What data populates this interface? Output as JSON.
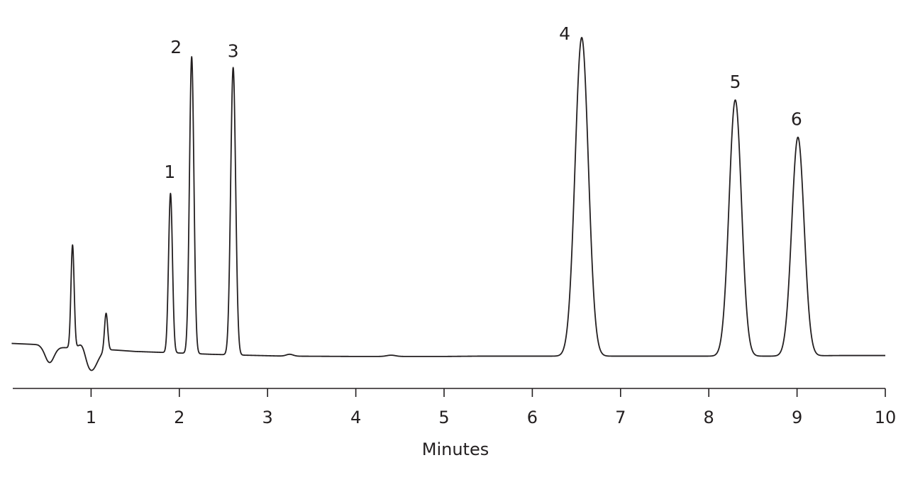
{
  "chart_data": {
    "type": "line",
    "title": "",
    "xlabel": "Minutes",
    "ylabel": "",
    "xlim": [
      0,
      10
    ],
    "ylim": [
      -0.06,
      1.07
    ],
    "xticks": [
      1,
      2,
      3,
      4,
      5,
      6,
      7,
      8,
      9,
      10
    ],
    "xtick_labels": [
      "1",
      "2",
      "3",
      "4",
      "5",
      "6",
      "7",
      "8",
      "9",
      "10"
    ],
    "grid": false,
    "legend": "none",
    "line_color": "#231f20",
    "baseline": {
      "x": [
        0.0,
        0.4,
        0.5,
        1.25,
        1.5,
        1.8,
        2.0,
        2.35,
        2.6,
        2.9,
        3.2,
        4.0,
        4.4,
        5.0,
        5.4,
        6.0,
        6.4,
        7.0,
        8.0,
        8.7,
        9.5,
        10.0
      ],
      "y": [
        0.04,
        0.035,
        0.028,
        0.018,
        0.013,
        0.01,
        0.008,
        0.004,
        0.002,
        0.0,
        -0.002,
        -0.003,
        -0.003,
        -0.003,
        -0.002,
        -0.002,
        -0.002,
        -0.002,
        -0.002,
        -0.002,
        0.0,
        0.0
      ]
    },
    "disturbances": [
      {
        "center": 0.53,
        "width": 0.05,
        "height": -0.05
      },
      {
        "center": 0.9,
        "width": 0.04,
        "height": 0.03
      },
      {
        "center": 1.0,
        "width": 0.07,
        "height": -0.07
      }
    ],
    "peaks": [
      {
        "label": "",
        "rt": 0.79,
        "height": 0.33,
        "width": 0.018
      },
      {
        "label": "",
        "rt": 1.17,
        "height": 0.12,
        "width": 0.018
      },
      {
        "label": "1",
        "rt": 1.9,
        "height": 0.51,
        "width": 0.022
      },
      {
        "label": "2",
        "rt": 2.14,
        "height": 0.95,
        "width": 0.025
      },
      {
        "label": "3",
        "rt": 2.61,
        "height": 0.92,
        "width": 0.028
      },
      {
        "label": "",
        "rt": 3.25,
        "height": 0.006,
        "width": 0.04
      },
      {
        "label": "",
        "rt": 4.4,
        "height": 0.004,
        "width": 0.05
      },
      {
        "label": "4",
        "rt": 6.56,
        "height": 1.02,
        "width": 0.075
      },
      {
        "label": "5",
        "rt": 8.3,
        "height": 0.82,
        "width": 0.07
      },
      {
        "label": "6",
        "rt": 9.01,
        "height": 0.7,
        "width": 0.07
      }
    ]
  }
}
